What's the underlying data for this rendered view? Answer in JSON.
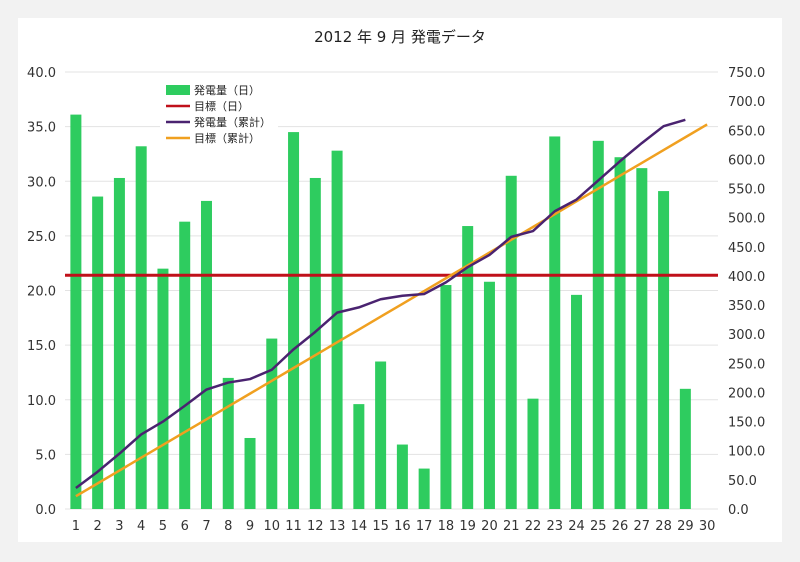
{
  "colors": {
    "daily_bar": "#2ecc5f",
    "daily_target": "#c0101a",
    "cumulative": "#4a2370",
    "cumulative_target": "#f0a020"
  },
  "chart_data": {
    "type": "bar",
    "title": "2012 年 9 月 発電データ",
    "categories": [
      "1",
      "2",
      "3",
      "4",
      "5",
      "6",
      "7",
      "8",
      "9",
      "10",
      "11",
      "12",
      "13",
      "14",
      "15",
      "16",
      "17",
      "18",
      "19",
      "20",
      "21",
      "22",
      "23",
      "24",
      "25",
      "26",
      "27",
      "28",
      "29",
      "30"
    ],
    "y_left": {
      "range": [
        0,
        40
      ],
      "ticks": [
        "0.0",
        "5.0",
        "10.0",
        "15.0",
        "20.0",
        "25.0",
        "30.0",
        "35.0",
        "40.0"
      ]
    },
    "y_right": {
      "range": [
        0,
        750
      ],
      "ticks": [
        "0.0",
        "50.0",
        "100.0",
        "150.0",
        "200.0",
        "250.0",
        "300.0",
        "350.0",
        "400.0",
        "450.0",
        "500.0",
        "550.0",
        "600.0",
        "650.0",
        "700.0",
        "750.0"
      ]
    },
    "grid": true,
    "legend_position": "top-left",
    "series": [
      {
        "name": "発電量（日）",
        "type": "bar",
        "axis": "left",
        "values": [
          36.1,
          28.6,
          30.3,
          33.2,
          22.0,
          26.3,
          28.2,
          12.0,
          6.5,
          15.6,
          34.5,
          30.3,
          32.8,
          9.6,
          13.5,
          5.9,
          3.7,
          20.5,
          25.9,
          20.8,
          30.5,
          10.1,
          34.1,
          19.6,
          33.7,
          32.2,
          31.2,
          29.1,
          11.0,
          null
        ]
      },
      {
        "name": "目標（日）",
        "type": "line",
        "axis": "left",
        "values": [
          21.4,
          21.4,
          21.4,
          21.4,
          21.4,
          21.4,
          21.4,
          21.4,
          21.4,
          21.4,
          21.4,
          21.4,
          21.4,
          21.4,
          21.4,
          21.4,
          21.4,
          21.4,
          21.4,
          21.4,
          21.4,
          21.4,
          21.4,
          21.4,
          21.4,
          21.4,
          21.4,
          21.4,
          21.4,
          21.4
        ]
      },
      {
        "name": "発電量（累計）",
        "type": "line",
        "axis": "right",
        "values": [
          36,
          64,
          95,
          128,
          150,
          177,
          205,
          217,
          223,
          239,
          274,
          304,
          337,
          346,
          360,
          366,
          369,
          389,
          415,
          436,
          467,
          477,
          511,
          531,
          564,
          597,
          628,
          657,
          668,
          null
        ]
      },
      {
        "name": "目標（累計）",
        "type": "line",
        "axis": "right",
        "values": [
          22,
          44,
          66,
          88,
          110,
          132,
          154,
          176,
          198,
          220,
          242,
          264,
          286,
          308,
          330,
          352,
          374,
          396,
          418,
          440,
          462,
          484,
          506,
          528,
          550,
          572,
          594,
          616,
          638,
          660
        ]
      }
    ]
  }
}
